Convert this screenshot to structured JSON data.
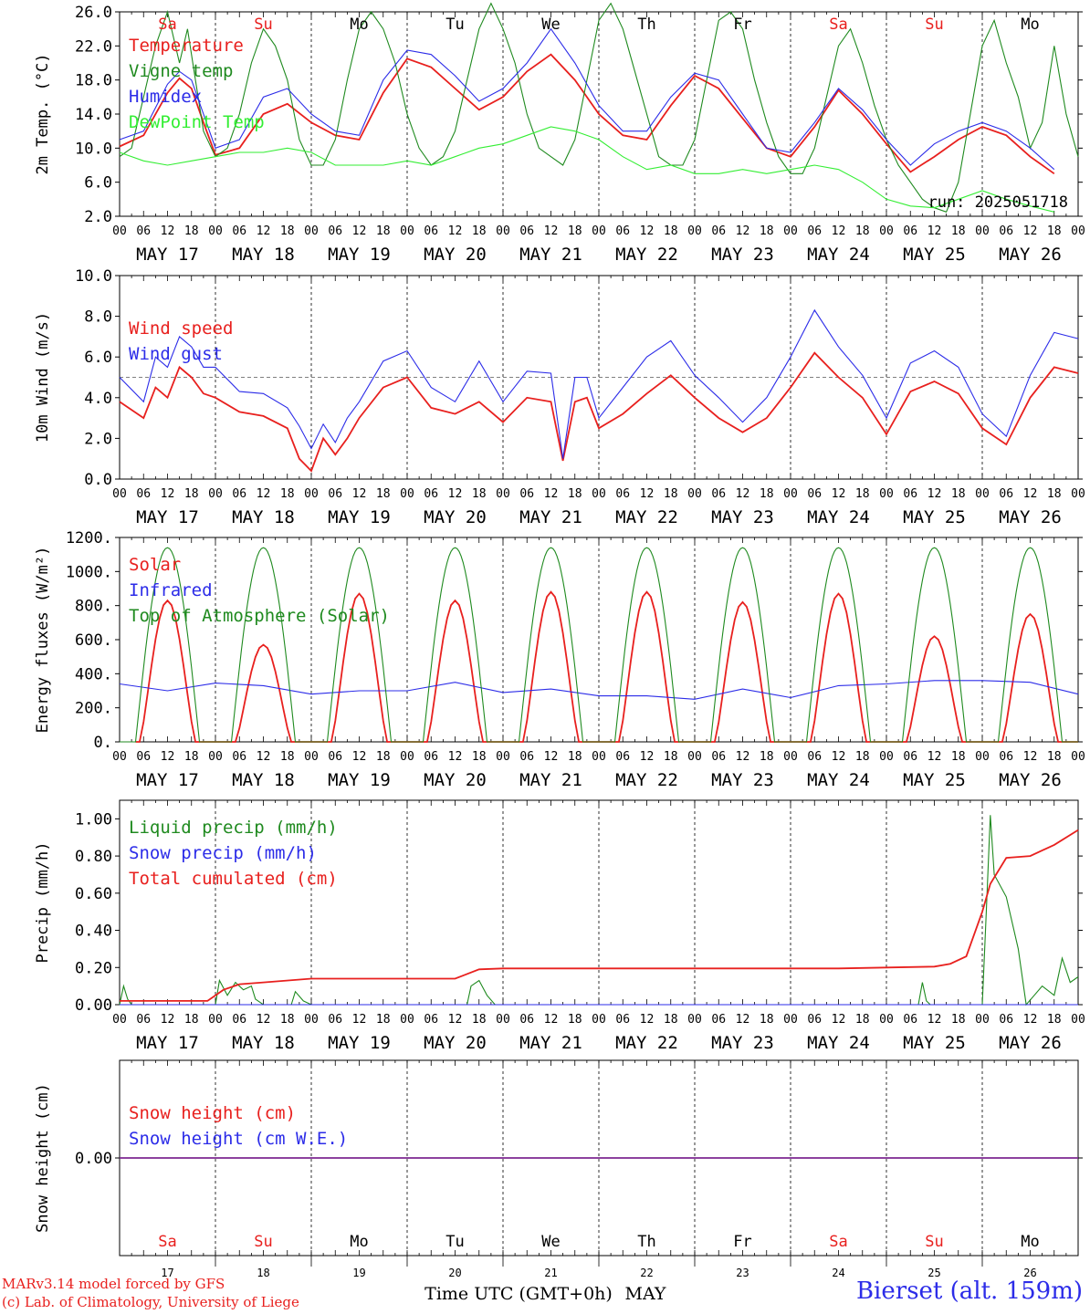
{
  "meta": {
    "run_label": "run: 2025051718",
    "xaxis_label": "Time UTC (GMT+0h)",
    "month_label": "MAY",
    "credit_line1": "MARv3.14 model forced by GFS",
    "credit_line2": "(c) Lab. of Climatology, University of Liege",
    "station": "Bierset (alt. 159m)",
    "colors": {
      "red": "#e8201e",
      "blue": "#2c2ce8",
      "green": "#1f8a1f",
      "lightgreen": "#33ee33",
      "weekend": "#e8201e",
      "weekday": "#000000"
    }
  },
  "days": {
    "dates": [
      "MAY 17",
      "MAY 18",
      "MAY 19",
      "MAY 20",
      "MAY 21",
      "MAY 22",
      "MAY 23",
      "MAY 24",
      "MAY 25",
      "MAY 26"
    ],
    "numbers": [
      "17",
      "18",
      "19",
      "20",
      "21",
      "22",
      "23",
      "24",
      "25",
      "26"
    ],
    "weekdays": [
      "Sa",
      "Su",
      "Mo",
      "Tu",
      "We",
      "Th",
      "Fr",
      "Sa",
      "Su",
      "Mo"
    ],
    "weekend": [
      true,
      true,
      false,
      false,
      false,
      false,
      false,
      true,
      true,
      false
    ],
    "hour_ticks": [
      "00",
      "06",
      "12",
      "18"
    ],
    "final_tick": "00"
  },
  "chart_data": [
    {
      "id": "temp",
      "type": "line",
      "ylabel": "2m Temp. (°C)",
      "ylim": [
        2,
        26
      ],
      "yticks": [
        2,
        6,
        10,
        14,
        18,
        22,
        26
      ],
      "yticklabels": [
        "2.0",
        "6.0",
        "10.0",
        "14.0",
        "18.0",
        "22.0",
        "26.0"
      ],
      "x_unit": "hours since May 17 00 UTC",
      "series": [
        {
          "name": "Temperature",
          "color": "red",
          "x": [
            0,
            6,
            12,
            15,
            18,
            21,
            24,
            30,
            36,
            42,
            48,
            54,
            60,
            66,
            72,
            78,
            84,
            90,
            96,
            102,
            108,
            114,
            120,
            126,
            132,
            138,
            144,
            150,
            156,
            162,
            168,
            174,
            180,
            186,
            192,
            198,
            204,
            210,
            216,
            222,
            228,
            234
          ],
          "y": [
            10.2,
            11.5,
            16.5,
            18.2,
            17,
            13,
            9.2,
            10,
            14,
            15.2,
            13,
            11.5,
            11,
            16.5,
            20.5,
            19.5,
            17,
            14.5,
            16,
            19,
            21,
            18,
            14,
            11.5,
            11,
            15,
            18.5,
            17,
            13.5,
            10,
            9,
            12.5,
            16.8,
            14,
            10.5,
            7.2,
            9,
            11,
            12.5,
            11.5,
            9,
            7
          ]
        },
        {
          "name": "Vigne temp",
          "color": "green",
          "x": [
            0,
            3,
            6,
            9,
            12,
            15,
            17,
            19,
            21,
            24,
            27,
            30,
            33,
            36,
            39,
            42,
            45,
            48,
            51,
            54,
            57,
            60,
            63,
            66,
            69,
            72,
            75,
            78,
            81,
            84,
            87,
            90,
            93,
            96,
            99,
            102,
            105,
            108,
            111,
            114,
            117,
            120,
            123,
            126,
            129,
            132,
            135,
            138,
            141,
            144,
            147,
            150,
            153,
            156,
            159,
            162,
            165,
            168,
            171,
            174,
            177,
            180,
            183,
            186,
            189,
            192,
            195,
            198,
            201,
            204,
            207,
            210,
            213,
            216,
            219,
            222,
            225,
            228,
            231,
            234,
            237,
            240
          ],
          "y": [
            9,
            10,
            16,
            22,
            26,
            20,
            24,
            18,
            12,
            9,
            10,
            14,
            20,
            24,
            22,
            18,
            11,
            8,
            8,
            11,
            18,
            24,
            26,
            24,
            20,
            14,
            10,
            8,
            9,
            12,
            18,
            24,
            27,
            24,
            20,
            14,
            10,
            9,
            8,
            11,
            18,
            25,
            27,
            24,
            19,
            14,
            9,
            8,
            8,
            11,
            18,
            25,
            26,
            24,
            18,
            13,
            9,
            7,
            7,
            10,
            16,
            22,
            24,
            20,
            15,
            11,
            8,
            6,
            4,
            3,
            2.5,
            6,
            14,
            22,
            25,
            20,
            16,
            10,
            13,
            22,
            14,
            9
          ]
        },
        {
          "name": "Humidex",
          "color": "blue",
          "x": [
            0,
            6,
            12,
            15,
            18,
            21,
            24,
            30,
            36,
            42,
            48,
            54,
            60,
            66,
            72,
            78,
            84,
            90,
            96,
            102,
            108,
            114,
            120,
            126,
            132,
            138,
            144,
            150,
            156,
            162,
            168,
            174,
            180,
            186,
            192,
            198,
            204,
            210,
            216,
            222,
            228,
            234
          ],
          "y": [
            11,
            12,
            17.5,
            19,
            18,
            14,
            10,
            11,
            16,
            17,
            14,
            12,
            11.5,
            18,
            21.5,
            21,
            18.5,
            15.5,
            17,
            20,
            24,
            20,
            15,
            12,
            12,
            16,
            18.8,
            18,
            14,
            10,
            9.5,
            13,
            17,
            14.5,
            11,
            8,
            10.5,
            12,
            13,
            12,
            10,
            7.5
          ]
        },
        {
          "name": "DewPoint Temp",
          "color": "lightgreen",
          "x": [
            0,
            6,
            12,
            18,
            24,
            30,
            36,
            42,
            48,
            54,
            60,
            66,
            72,
            78,
            84,
            90,
            96,
            102,
            108,
            114,
            120,
            126,
            132,
            138,
            144,
            150,
            156,
            162,
            168,
            174,
            180,
            186,
            192,
            198,
            204,
            210,
            216,
            222,
            228,
            234
          ],
          "y": [
            9.5,
            8.5,
            8,
            8.5,
            9,
            9.5,
            9.5,
            10,
            9.5,
            8,
            8,
            8,
            8.5,
            8,
            9,
            10,
            10.5,
            11.5,
            12.5,
            12,
            11,
            9,
            7.5,
            8,
            7,
            7,
            7.5,
            7,
            7.5,
            8,
            7.5,
            6,
            4,
            3.2,
            3,
            4,
            5,
            4,
            3.2,
            2.5
          ]
        }
      ],
      "legend": [
        "Temperature",
        "Vigne temp",
        "Humidex",
        "DewPoint Temp"
      ],
      "legend_position": "left",
      "grid": false
    },
    {
      "id": "wind",
      "type": "line",
      "ylabel": "10m Wind (m/s)",
      "ylim": [
        0,
        10
      ],
      "yticks": [
        0,
        2,
        4,
        6,
        8,
        10
      ],
      "yticklabels": [
        "0.0",
        "2.0",
        "4.0",
        "6.0",
        "8.0",
        "10.0"
      ],
      "ref_line": 5,
      "series": [
        {
          "name": "Wind speed",
          "color": "red",
          "x": [
            0,
            6,
            9,
            12,
            15,
            18,
            21,
            24,
            30,
            36,
            42,
            45,
            48,
            51,
            54,
            57,
            60,
            66,
            72,
            78,
            84,
            90,
            96,
            102,
            108,
            111,
            114,
            117,
            120,
            126,
            132,
            138,
            144,
            150,
            156,
            162,
            168,
            174,
            180,
            186,
            192,
            198,
            204,
            210,
            216,
            222,
            228,
            234,
            240
          ],
          "y": [
            3.8,
            3,
            4.5,
            4,
            5.5,
            5,
            4.2,
            4,
            3.3,
            3.1,
            2.5,
            1,
            0.4,
            2,
            1.2,
            2,
            3,
            4.5,
            5,
            3.5,
            3.2,
            3.8,
            2.8,
            4,
            3.8,
            0.9,
            3.8,
            4,
            2.5,
            3.2,
            4.2,
            5.1,
            4,
            3,
            2.3,
            3,
            4.5,
            6.2,
            5,
            4,
            2.2,
            4.3,
            4.8,
            4.2,
            2.5,
            1.7,
            4,
            5.5,
            5.2
          ]
        },
        {
          "name": "Wind gust",
          "color": "blue",
          "x": [
            0,
            6,
            9,
            12,
            15,
            18,
            21,
            24,
            30,
            36,
            42,
            45,
            48,
            51,
            54,
            57,
            60,
            66,
            72,
            78,
            84,
            90,
            96,
            102,
            108,
            111,
            114,
            117,
            120,
            126,
            132,
            138,
            144,
            150,
            156,
            162,
            168,
            174,
            180,
            186,
            192,
            198,
            204,
            210,
            216,
            222,
            228,
            234,
            240
          ],
          "y": [
            5,
            3.8,
            6,
            5.5,
            7,
            6.5,
            5.5,
            5.5,
            4.3,
            4.2,
            3.5,
            2.6,
            1.5,
            2.7,
            1.8,
            3,
            3.8,
            5.8,
            6.3,
            4.5,
            3.8,
            5.8,
            3.8,
            5.3,
            5.2,
            1,
            5,
            5,
            3,
            4.5,
            6,
            6.8,
            5.1,
            4,
            2.8,
            4,
            6,
            8.3,
            6.5,
            5.1,
            3,
            5.7,
            6.3,
            5.5,
            3.2,
            2.1,
            5.1,
            7.2,
            6.9
          ]
        }
      ],
      "legend": [
        "Wind speed",
        "Wind gust"
      ],
      "legend_position": "left",
      "grid": false
    },
    {
      "id": "energy",
      "type": "line",
      "ylabel": "Energy fluxes (W/m²)",
      "ylim": [
        0,
        1200
      ],
      "yticks": [
        0,
        200,
        400,
        600,
        800,
        1000,
        1200
      ],
      "yticklabels": [
        "0.",
        "200.",
        "400.",
        "600.",
        "800.",
        "1000.",
        "1200."
      ],
      "series": [
        {
          "name": "Solar",
          "color": "red",
          "peaks": [
            [
              12,
              830
            ],
            [
              36,
              570
            ],
            [
              60,
              870
            ],
            [
              84,
              830
            ],
            [
              108,
              880
            ],
            [
              132,
              880
            ],
            [
              156,
              820
            ],
            [
              180,
              870
            ],
            [
              204,
              620
            ],
            [
              228,
              750
            ]
          ]
        },
        {
          "name": "Infrared",
          "color": "blue",
          "x": [
            0,
            12,
            24,
            36,
            48,
            60,
            72,
            84,
            96,
            108,
            120,
            132,
            144,
            156,
            168,
            180,
            192,
            204,
            216,
            228,
            240
          ],
          "y": [
            340,
            300,
            345,
            330,
            280,
            300,
            300,
            350,
            290,
            310,
            270,
            270,
            250,
            310,
            260,
            330,
            340,
            360,
            360,
            350,
            280
          ]
        },
        {
          "name": "Top of Atmosphere (Solar)",
          "color": "green",
          "peak": 1140,
          "sunrise_h": 4,
          "sunset_h": 20
        }
      ],
      "legend": [
        "Solar",
        "Infrared",
        "Top of Atmosphere (Solar)"
      ],
      "legend_position": "left",
      "grid": false
    },
    {
      "id": "precip",
      "type": "line",
      "ylabel": "Precip (mm/h)",
      "ylim": [
        0,
        1.1
      ],
      "yticks": [
        0,
        0.2,
        0.4,
        0.6,
        0.8,
        1.0
      ],
      "yticklabels": [
        "0.00",
        "0.20",
        "0.40",
        "0.60",
        "0.80",
        "1.00"
      ],
      "series": [
        {
          "name": "Liquid precip (mm/h)",
          "color": "green",
          "x": [
            0,
            1,
            2,
            3,
            4,
            24,
            25,
            27,
            29,
            31,
            33,
            34,
            36,
            43,
            44,
            46,
            48,
            87,
            88,
            90,
            92,
            94,
            200,
            201,
            202,
            203,
            204,
            216,
            217,
            218,
            219,
            222,
            225,
            227,
            229,
            231,
            234,
            236,
            238,
            240
          ],
          "y": [
            0,
            0.1,
            0.03,
            0,
            0,
            0,
            0.13,
            0.05,
            0.12,
            0.08,
            0.1,
            0.03,
            0,
            0,
            0.07,
            0.02,
            0,
            0,
            0.1,
            0.13,
            0.05,
            0,
            0,
            0.12,
            0.02,
            0,
            0,
            0,
            0.5,
            1.02,
            0.7,
            0.58,
            0.3,
            0,
            0.05,
            0.1,
            0.05,
            0.25,
            0.12,
            0.15
          ]
        },
        {
          "name": "Snow precip (mm/h)",
          "color": "blue",
          "x": [
            0,
            240
          ],
          "y": [
            0,
            0
          ]
        },
        {
          "name": "Total cumulated (cm)",
          "color": "red",
          "x": [
            0,
            22,
            26,
            30,
            36,
            48,
            84,
            90,
            96,
            180,
            192,
            204,
            208,
            212,
            216,
            218,
            222,
            228,
            234,
            240
          ],
          "y": [
            0.02,
            0.02,
            0.08,
            0.11,
            0.12,
            0.14,
            0.14,
            0.19,
            0.195,
            0.195,
            0.2,
            0.205,
            0.22,
            0.26,
            0.5,
            0.65,
            0.79,
            0.8,
            0.86,
            0.94
          ]
        }
      ],
      "legend": [
        "Liquid precip (mm/h)",
        "Snow precip (mm/h)",
        "Total cumulated (cm)"
      ],
      "legend_position": "left",
      "grid": false
    },
    {
      "id": "snow",
      "type": "line",
      "ylabel": "Snow height (cm)",
      "ylim": [
        -1,
        1
      ],
      "yticks": [
        0
      ],
      "yticklabels": [
        "0.00"
      ],
      "series": [
        {
          "name": "Snow height (cm)",
          "color": "red",
          "x": [
            0,
            240
          ],
          "y": [
            0,
            0
          ]
        },
        {
          "name": "Snow height (cm W.E.)",
          "color": "blue",
          "x": [
            0,
            240
          ],
          "y": [
            0,
            0
          ]
        }
      ],
      "legend": [
        "Snow height (cm)",
        "Snow height (cm W.E.)"
      ],
      "legend_position": "left",
      "grid": false
    }
  ]
}
